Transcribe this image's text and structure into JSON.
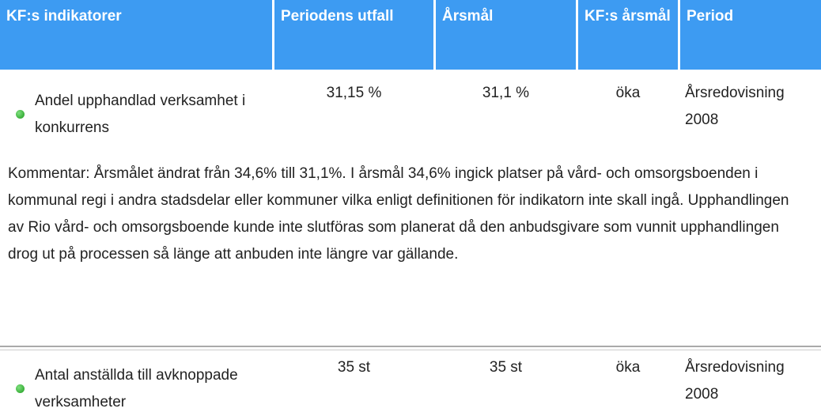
{
  "table": {
    "columns": [
      "KF:s indikatorer",
      "Periodens utfall",
      "Årsmål",
      "KF:s årsmål",
      "Period"
    ],
    "rows": [
      {
        "indicator": "Andel upphandlad verksamhet i konkurrens",
        "outcome": "31,15 %",
        "target": "31,1 %",
        "kf_target": "öka",
        "period": "Årsredovisning 2008",
        "comment": "Kommentar: Årsmålet ändrat från 34,6% till 31,1%. I årsmål 34,6% ingick platser på vård- och omsorgsboenden i kommunal regi i andra stadsdelar eller kommuner vilka enligt definitionen för indikatorn inte skall ingå. Upphandlingen av Rio vård- och omsorgsboende kunde inte slutföras som planerat då den anbudsgivare som vunnit upphandlingen drog ut på processen så länge att anbuden inte längre var gällande."
      },
      {
        "indicator": "Antal anställda till avknoppade verksamheter",
        "outcome": "35 st",
        "target": "35 st",
        "kf_target": "öka",
        "period": "Årsredovisning 2008"
      }
    ]
  }
}
